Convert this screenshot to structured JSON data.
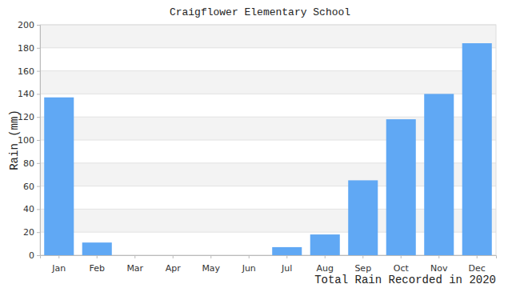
{
  "chart_data": {
    "type": "bar",
    "title": "Craigflower Elementary School",
    "y_label": "Rain (mm)",
    "x_label": "Total Rain Recorded in 2020",
    "categories": [
      "Jan",
      "Feb",
      "Mar",
      "Apr",
      "May",
      "Jun",
      "Jul",
      "Aug",
      "Sep",
      "Oct",
      "Nov",
      "Dec"
    ],
    "values": [
      137,
      11,
      0,
      0,
      0,
      0,
      7,
      18,
      65,
      118,
      140,
      184
    ],
    "color": "#60a8f4",
    "ylim": [
      0,
      200
    ],
    "yticks": [
      0,
      20,
      40,
      60,
      80,
      100,
      120,
      140,
      160,
      180,
      200
    ],
    "grid": true
  }
}
